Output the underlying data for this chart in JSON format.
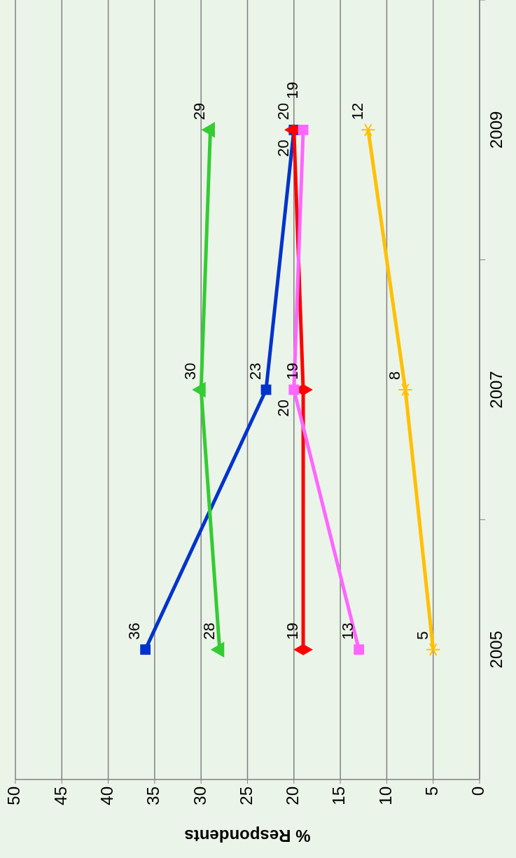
{
  "chart_data": {
    "type": "line",
    "orientation": "horizontal",
    "xlabel": "% Respondents",
    "categories": [
      "2009",
      "2007",
      "2005"
    ],
    "xlim": [
      50,
      0
    ],
    "xticks": [
      50,
      45,
      40,
      35,
      30,
      25,
      20,
      15,
      10,
      5,
      0
    ],
    "grid": "x",
    "data_labels": true,
    "series": [
      {
        "color": "#0033cc",
        "marker": "square",
        "values": [
          20,
          23,
          36
        ]
      },
      {
        "color": "#33cc33",
        "marker": "triangle",
        "values": [
          29,
          30,
          28
        ]
      },
      {
        "color": "#ff0000",
        "marker": "diamond",
        "values": [
          20,
          19,
          19
        ]
      },
      {
        "color": "#ff66ff",
        "marker": "square",
        "values": [
          19,
          20,
          13
        ]
      },
      {
        "color": "#ffc000",
        "marker": "cross",
        "values": [
          12,
          8,
          5
        ]
      }
    ]
  }
}
